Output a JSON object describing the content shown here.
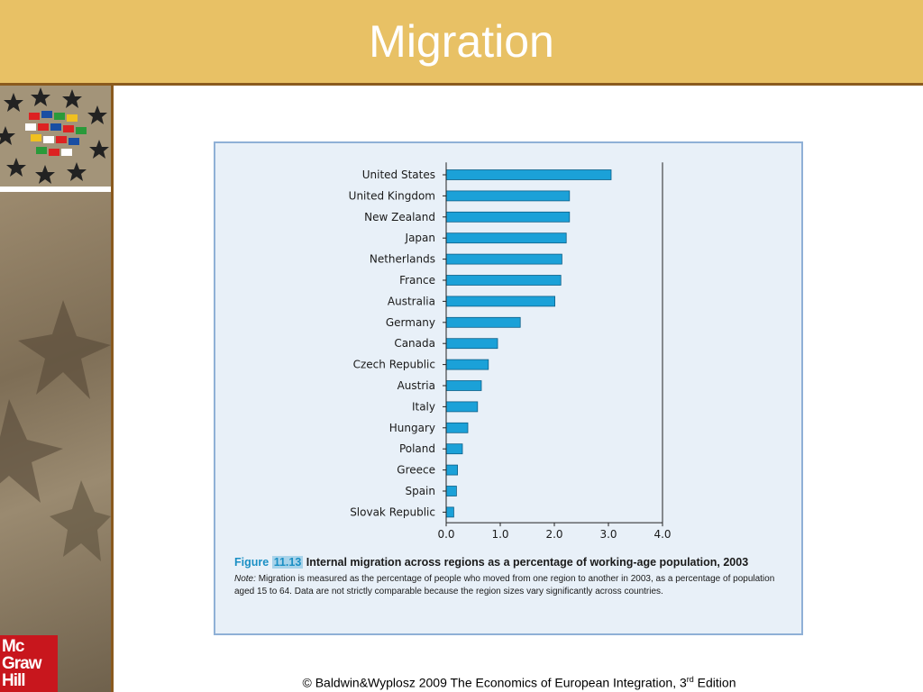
{
  "slide": {
    "title": "Migration",
    "footer_text": "© Baldwin&Wyplosz 2009 The Economics of European Integration, 3",
    "footer_sup": "rd",
    "footer_tail": " Edition",
    "logo_lines": [
      "Mc",
      "Graw",
      "Hill"
    ]
  },
  "caption": {
    "figure_word": "Figure",
    "figure_number": "11.13",
    "title": "Internal migration across regions as a percentage of working-age population, 2003",
    "note_label": "Note:",
    "note_text": "Migration is measured as the percentage of people who moved from one region to another in 2003, as a percentage of population aged 15 to 64. Data are not strictly comparable because the region sizes vary significantly across countries."
  },
  "chart_data": {
    "type": "bar",
    "orientation": "horizontal",
    "categories": [
      "United States",
      "United Kingdom",
      "New Zealand",
      "Japan",
      "Netherlands",
      "France",
      "Australia",
      "Germany",
      "Canada",
      "Czech Republic",
      "Austria",
      "Italy",
      "Hungary",
      "Poland",
      "Greece",
      "Spain",
      "Slovak Republic"
    ],
    "values": [
      3.05,
      2.28,
      2.28,
      2.22,
      2.14,
      2.12,
      2.01,
      1.37,
      0.95,
      0.78,
      0.65,
      0.58,
      0.4,
      0.3,
      0.21,
      0.19,
      0.14
    ],
    "xlim": [
      0,
      4.0
    ],
    "xticks": [
      "0.0",
      "1.0",
      "2.0",
      "3.0",
      "4.0"
    ],
    "bar_color": "#1ba1d8",
    "grid": false
  }
}
